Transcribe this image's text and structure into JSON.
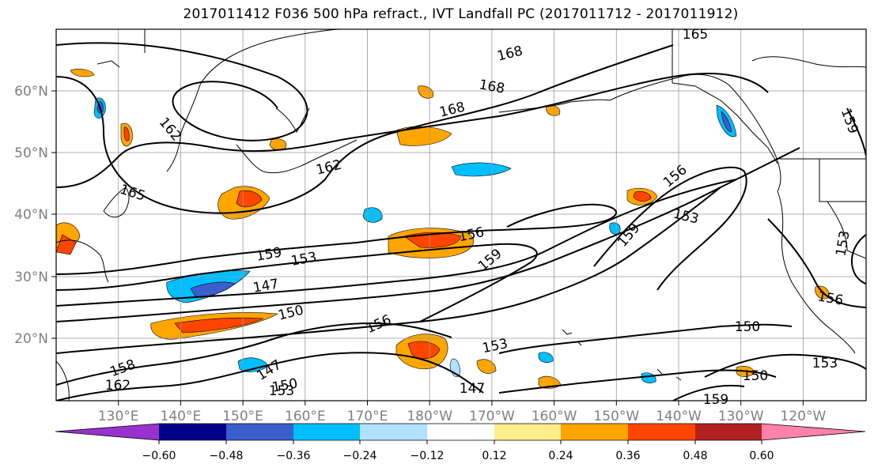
{
  "title": "2017011412 F036 500 hPa refract., IVT Landfall PC (2017011712 - 2017011912)",
  "lat_labels": [
    "60°N",
    "50°N",
    "40°N",
    "30°N",
    "20°N"
  ],
  "lon_labels": [
    "130°E",
    "140°E",
    "150°E",
    "160°E",
    "170°E",
    "180°W",
    "170°W",
    "160°W",
    "150°W",
    "140°W",
    "130°W",
    "120°W"
  ],
  "contour_labels": [
    "165",
    "168",
    "168",
    "168",
    "162",
    "165",
    "162",
    "156",
    "153",
    "159",
    "159",
    "153",
    "156",
    "159",
    "147",
    "150",
    "156",
    "153",
    "150",
    "147",
    "150",
    "153",
    "158",
    "162",
    "147",
    "150",
    "159",
    "156",
    "153",
    "153",
    "159"
  ],
  "colorbar": {
    "ticks": [
      "−0.60",
      "−0.48",
      "−0.36",
      "−0.24",
      "−0.12",
      "0.12",
      "0.24",
      "0.36",
      "0.48",
      "0.60"
    ],
    "colors": [
      "#9932cc",
      "#00008b",
      "#3a5fcd",
      "#00bfff",
      "#b0e2ff",
      "#ffffff",
      "#ffec8b",
      "#ffa500",
      "#ff4500",
      "#b22222",
      "#ff82ab"
    ]
  }
}
